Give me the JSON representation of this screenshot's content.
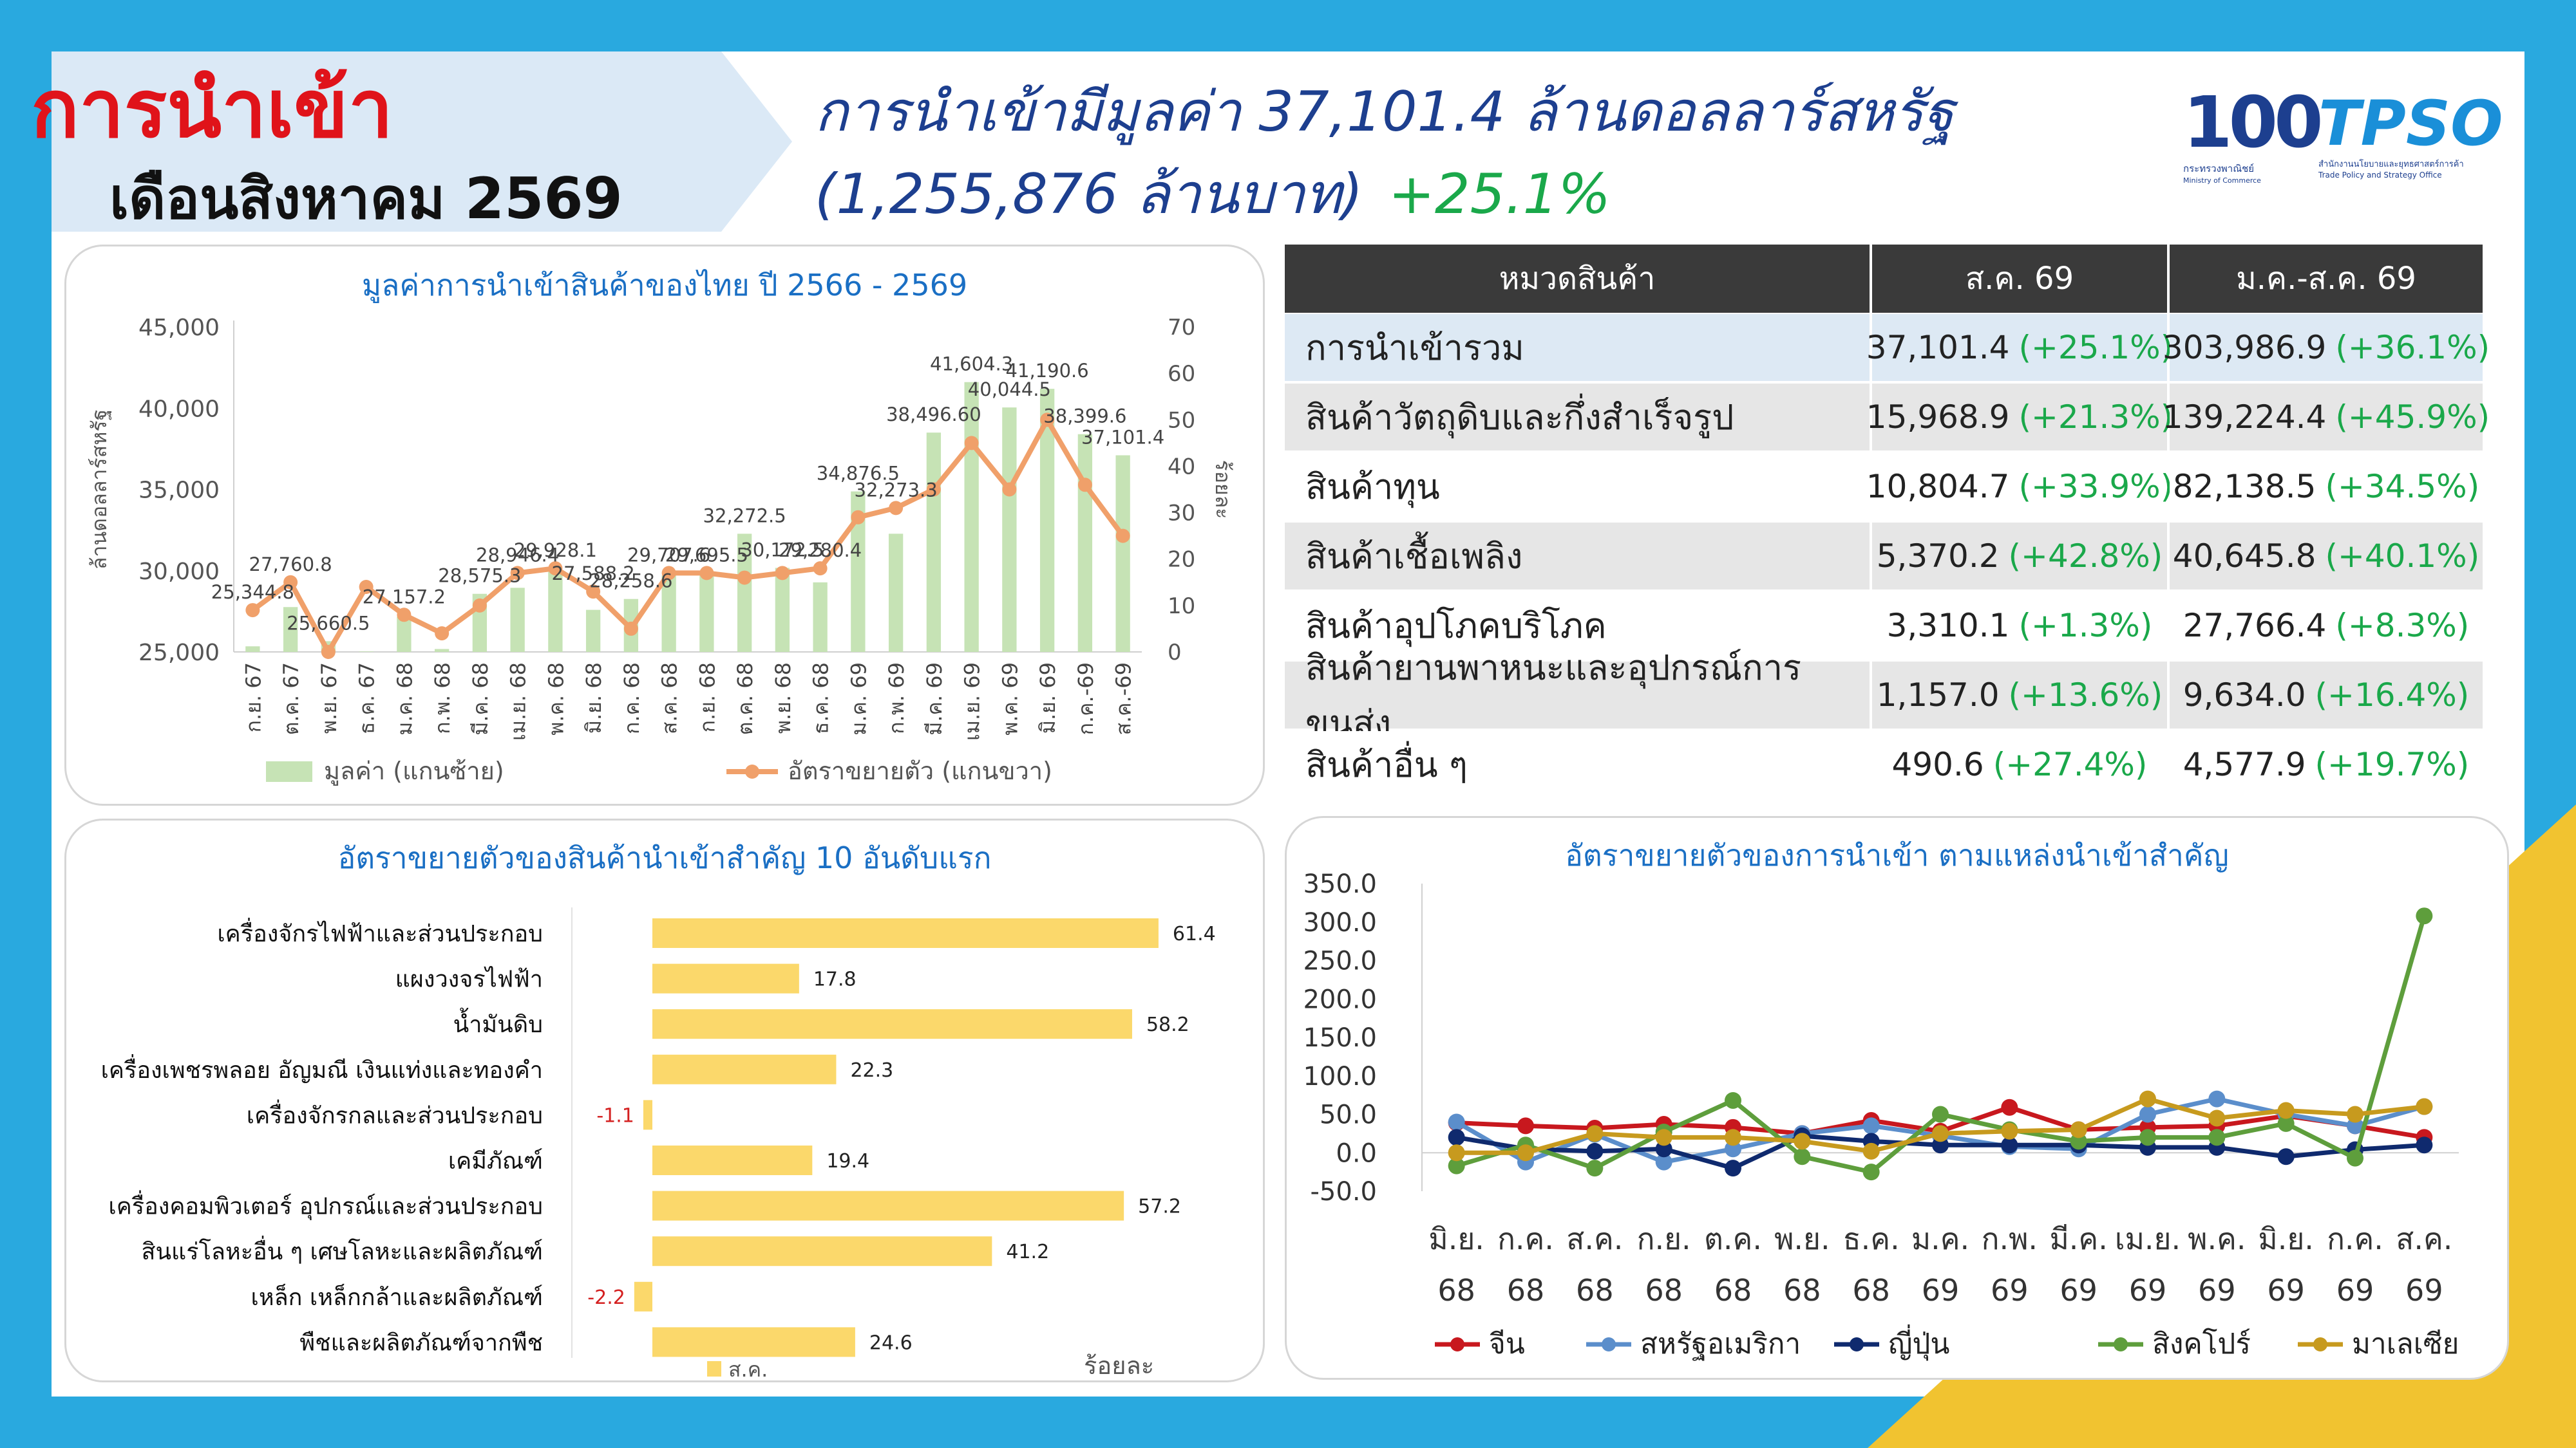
{
  "header": {
    "title": "การนำเข้า",
    "subtitle": "เดือนสิงหาคม 2569",
    "headline_1": "การนำเข้ามีมูลค่า 37,101.4 ล้านดอลลาร์สหรัฐ",
    "headline_2": "(1,255,876 ล้านบาท)",
    "headline_pct": "+25.1%",
    "logo_1_number": "100",
    "logo_1_line1": "กระทรวงพาณิชย์",
    "logo_1_line2": "Ministry of Commerce",
    "logo_2_text": "TPSO",
    "logo_2_line1": "สำนักงานนโยบายและยุทธศาสตร์การค้า",
    "logo_2_line2": "Trade Policy and Strategy Office"
  },
  "colors": {
    "background": "#29a9df",
    "title_red": "#e0131a",
    "navy": "#1d3f8f",
    "bar_green": "#c6e3b5",
    "line_orange": "#f0a06a",
    "bar_yellow": "#fbd86b",
    "accent_yellow": "#f1c330",
    "pct_green": "#1aa84a",
    "neg_red": "#d42020",
    "table_header": "#3a3a3a",
    "table_highlight": "#dde9f4",
    "table_shade": "#e6e6e6"
  },
  "chart_data": [
    {
      "type": "bar",
      "title": "มูลค่าการนำเข้าสินค้าของไทย ปี 2566 - 2569",
      "ylabel": "ล้านดอลลาร์สหรัฐ",
      "y2label": "ร้อยละ",
      "ylim": [
        25000,
        45000
      ],
      "y2lim": [
        0,
        70
      ],
      "yticks": [
        "25,000",
        "30,000",
        "35,000",
        "40,000",
        "45,000"
      ],
      "y2ticks": [
        "0",
        "10",
        "20",
        "30",
        "40",
        "50",
        "60",
        "70"
      ],
      "categories": [
        "ก.ย. 67",
        "ต.ค. 67",
        "พ.ย. 67",
        "ธ.ค. 67",
        "ม.ค. 68",
        "ก.พ. 68",
        "มี.ค. 68",
        "เม.ย. 68",
        "พ.ค. 68",
        "มิ.ย. 68",
        "ก.ค. 68",
        "ส.ค. 68",
        "ก.ย. 68",
        "ต.ค. 68",
        "พ.ย. 68",
        "ธ.ค. 68",
        "ม.ค. 69",
        "ก.พ. 69",
        "มี.ค. 69",
        "เม.ย. 69",
        "พ.ค. 69",
        "มิ.ย. 69",
        "ก.ค.-69",
        "ส.ค.-69"
      ],
      "series": [
        {
          "name": "มูลค่า (แกนซ้าย)",
          "axis": "left",
          "values": [
            25344.8,
            27760.8,
            25660.5,
            25030,
            27157.2,
            25180,
            28575.3,
            28946.4,
            29928.1,
            27588.2,
            28258.6,
            29707.6,
            29695.5,
            32272.5,
            30172.5,
            29280.4,
            34876.5,
            32273.3,
            38496.6,
            41604.3,
            40044.5,
            41190.6,
            38399.6,
            37101.4
          ],
          "labels": [
            "25,344.8",
            "27,760.8",
            "25,660.5",
            "",
            "27,157.2",
            "",
            "28,575.3",
            "28,946.4",
            "29,928.1",
            "27,588.2",
            "28,258.6",
            "29,707.6",
            "29,695.5",
            "32,272.5",
            "30,172.5",
            "29,280.4",
            "34,876.5",
            "32,273.3",
            "38,496.60",
            "41,604.3",
            "40,044.5",
            "41,190.6",
            "38,399.6",
            "37,101.4"
          ]
        },
        {
          "name": "อัตราขยายตัว (แกนขวา)",
          "axis": "right",
          "values": [
            9,
            15,
            0,
            14,
            8,
            4,
            10,
            17,
            18,
            13,
            5,
            17,
            17,
            16,
            17,
            18,
            29,
            31,
            35,
            45,
            35,
            50,
            36,
            25
          ]
        }
      ]
    },
    {
      "type": "bar",
      "orientation": "horizontal",
      "title": "อัตราขยายตัวของสินค้านำเข้าสำคัญ 10 อันดับแรก",
      "xlabel": "ร้อยละ",
      "legend": "ส.ค.",
      "categories": [
        "เครื่องจักรไฟฟ้าและส่วนประกอบ",
        "แผงวงจรไฟฟ้า",
        "น้ำมันดิบ",
        "เครื่องเพชรพลอย อัญมณี เงินแท่งและทองคำ",
        "เครื่องจักรกลและส่วนประกอบ",
        "เคมีภัณฑ์",
        "เครื่องคอมพิวเตอร์ อุปกรณ์และส่วนประกอบ",
        "สินแร่โลหะอื่น ๆ เศษโลหะและผลิตภัณฑ์",
        "เหล็ก เหล็กกล้าและผลิตภัณฑ์",
        "พืชและผลิตภัณฑ์จากพืช"
      ],
      "values": [
        61.4,
        17.8,
        58.2,
        22.3,
        -1.1,
        19.4,
        57.2,
        41.2,
        -2.2,
        24.6
      ],
      "labels": [
        "61.4",
        "17.8",
        "58.2",
        "22.3",
        "-1.1",
        "19.4",
        "57.2",
        "41.2",
        "-2.2",
        "24.6"
      ]
    },
    {
      "type": "line",
      "title": "อัตราขยายตัวของการนำเข้า ตามแหล่งนำเข้าสำคัญ",
      "ylim": [
        -50,
        350
      ],
      "yticks": [
        "-50.0",
        "0.0",
        "50.0",
        "100.0",
        "150.0",
        "200.0",
        "250.0",
        "300.0",
        "350.0"
      ],
      "categories": [
        [
          "มิ.ย.",
          "68"
        ],
        [
          "ก.ค.",
          "68"
        ],
        [
          "ส.ค.",
          "68"
        ],
        [
          "ก.ย.",
          "68"
        ],
        [
          "ต.ค.",
          "68"
        ],
        [
          "พ.ย.",
          "68"
        ],
        [
          "ธ.ค.",
          "68"
        ],
        [
          "ม.ค.",
          "69"
        ],
        [
          "ก.พ.",
          "69"
        ],
        [
          "มี.ค.",
          "69"
        ],
        [
          "เม.ย.",
          "69"
        ],
        [
          "พ.ค.",
          "69"
        ],
        [
          "มิ.ย.",
          "69"
        ],
        [
          "ก.ค.",
          "69"
        ],
        [
          "ส.ค.",
          "69"
        ]
      ],
      "series": [
        {
          "name": "จีน",
          "color": "#c8181e",
          "values": [
            39,
            35,
            32,
            37,
            33,
            25,
            42,
            28,
            59,
            30,
            33,
            35,
            48,
            35,
            20
          ]
        },
        {
          "name": "สหรัฐอเมริกา",
          "color": "#5b8ecb",
          "values": [
            40,
            -12,
            24,
            -12,
            5,
            25,
            35,
            22,
            8,
            5,
            50,
            70,
            50,
            35,
            60
          ]
        },
        {
          "name": "ญี่ปุ่น",
          "color": "#0f2a6e",
          "values": [
            20,
            5,
            2,
            5,
            -20,
            22,
            15,
            10,
            10,
            10,
            7,
            7,
            -5,
            4,
            10
          ]
        },
        {
          "name": "สิงคโปร์",
          "color": "#5e9e3c",
          "values": [
            -17,
            10,
            -20,
            27,
            68,
            -5,
            -25,
            50,
            30,
            15,
            20,
            20,
            38,
            -7,
            308
          ]
        },
        {
          "name": "มาเลเซีย",
          "color": "#c79a1e",
          "values": [
            0,
            0,
            25,
            20,
            20,
            15,
            2,
            25,
            28,
            30,
            70,
            45,
            55,
            50,
            60
          ]
        }
      ]
    }
  ],
  "table": {
    "headers": [
      "หมวดสินค้า",
      "ส.ค. 69",
      "ม.ค.-ส.ค. 69"
    ],
    "rows": [
      {
        "name": "การนำเข้ารวม",
        "v1": "37,101.4",
        "p1": "(+25.1%)",
        "v2": "303,986.9",
        "p2": "(+36.1%)"
      },
      {
        "name": "สินค้าวัตถุดิบและกึ่งสำเร็จรูป",
        "v1": "15,968.9",
        "p1": "(+21.3%)",
        "v2": "139,224.4",
        "p2": "(+45.9%)"
      },
      {
        "name": "สินค้าทุน",
        "v1": "10,804.7",
        "p1": "(+33.9%)",
        "v2": "82,138.5",
        "p2": "(+34.5%)"
      },
      {
        "name": "สินค้าเชื้อเพลิง",
        "v1": "5,370.2",
        "p1": "(+42.8%)",
        "v2": "40,645.8",
        "p2": "(+40.1%)"
      },
      {
        "name": "สินค้าอุปโภคบริโภค",
        "v1": "3,310.1",
        "p1": "(+1.3%)",
        "v2": "27,766.4",
        "p2": "(+8.3%)"
      },
      {
        "name": "สินค้ายานพาหนะและอุปกรณ์การขนส่ง",
        "v1": "1,157.0",
        "p1": "(+13.6%)",
        "v2": "9,634.0",
        "p2": "(+16.4%)"
      },
      {
        "name": "สินค้าอื่น ๆ",
        "v1": "490.6",
        "p1": "(+27.4%)",
        "v2": "4,577.9",
        "p2": "(+19.7%)"
      }
    ]
  }
}
